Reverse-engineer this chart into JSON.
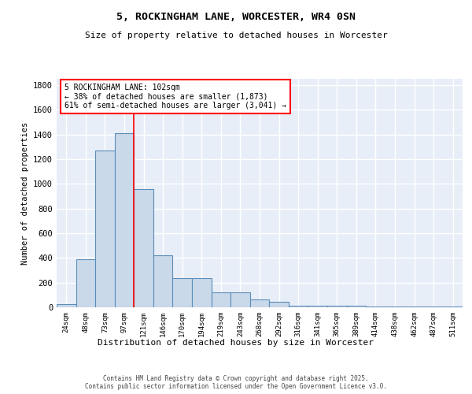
{
  "title": "5, ROCKINGHAM LANE, WORCESTER, WR4 0SN",
  "subtitle": "Size of property relative to detached houses in Worcester",
  "xlabel": "Distribution of detached houses by size in Worcester",
  "ylabel": "Number of detached properties",
  "categories": [
    "24sqm",
    "48sqm",
    "73sqm",
    "97sqm",
    "121sqm",
    "146sqm",
    "170sqm",
    "194sqm",
    "219sqm",
    "243sqm",
    "268sqm",
    "292sqm",
    "316sqm",
    "341sqm",
    "365sqm",
    "389sqm",
    "414sqm",
    "438sqm",
    "462sqm",
    "487sqm",
    "511sqm"
  ],
  "values": [
    25,
    390,
    1270,
    1410,
    960,
    420,
    235,
    235,
    120,
    120,
    65,
    45,
    15,
    10,
    10,
    10,
    5,
    5,
    5,
    5,
    5
  ],
  "bar_color": "#c9d9ea",
  "bar_edge_color": "#5b8db8",
  "bar_edge_width": 0.8,
  "red_line_x": 3.5,
  "annotation_text": "5 ROCKINGHAM LANE: 102sqm\n← 38% of detached houses are smaller (1,873)\n61% of semi-detached houses are larger (3,041) →",
  "annotation_box_color": "white",
  "annotation_box_edge_color": "red",
  "ylim": [
    0,
    1850
  ],
  "yticks": [
    0,
    200,
    400,
    600,
    800,
    1000,
    1200,
    1400,
    1600,
    1800
  ],
  "bg_color": "#e8eef8",
  "grid_color": "white",
  "footer_line1": "Contains HM Land Registry data © Crown copyright and database right 2025.",
  "footer_line2": "Contains public sector information licensed under the Open Government Licence v3.0."
}
